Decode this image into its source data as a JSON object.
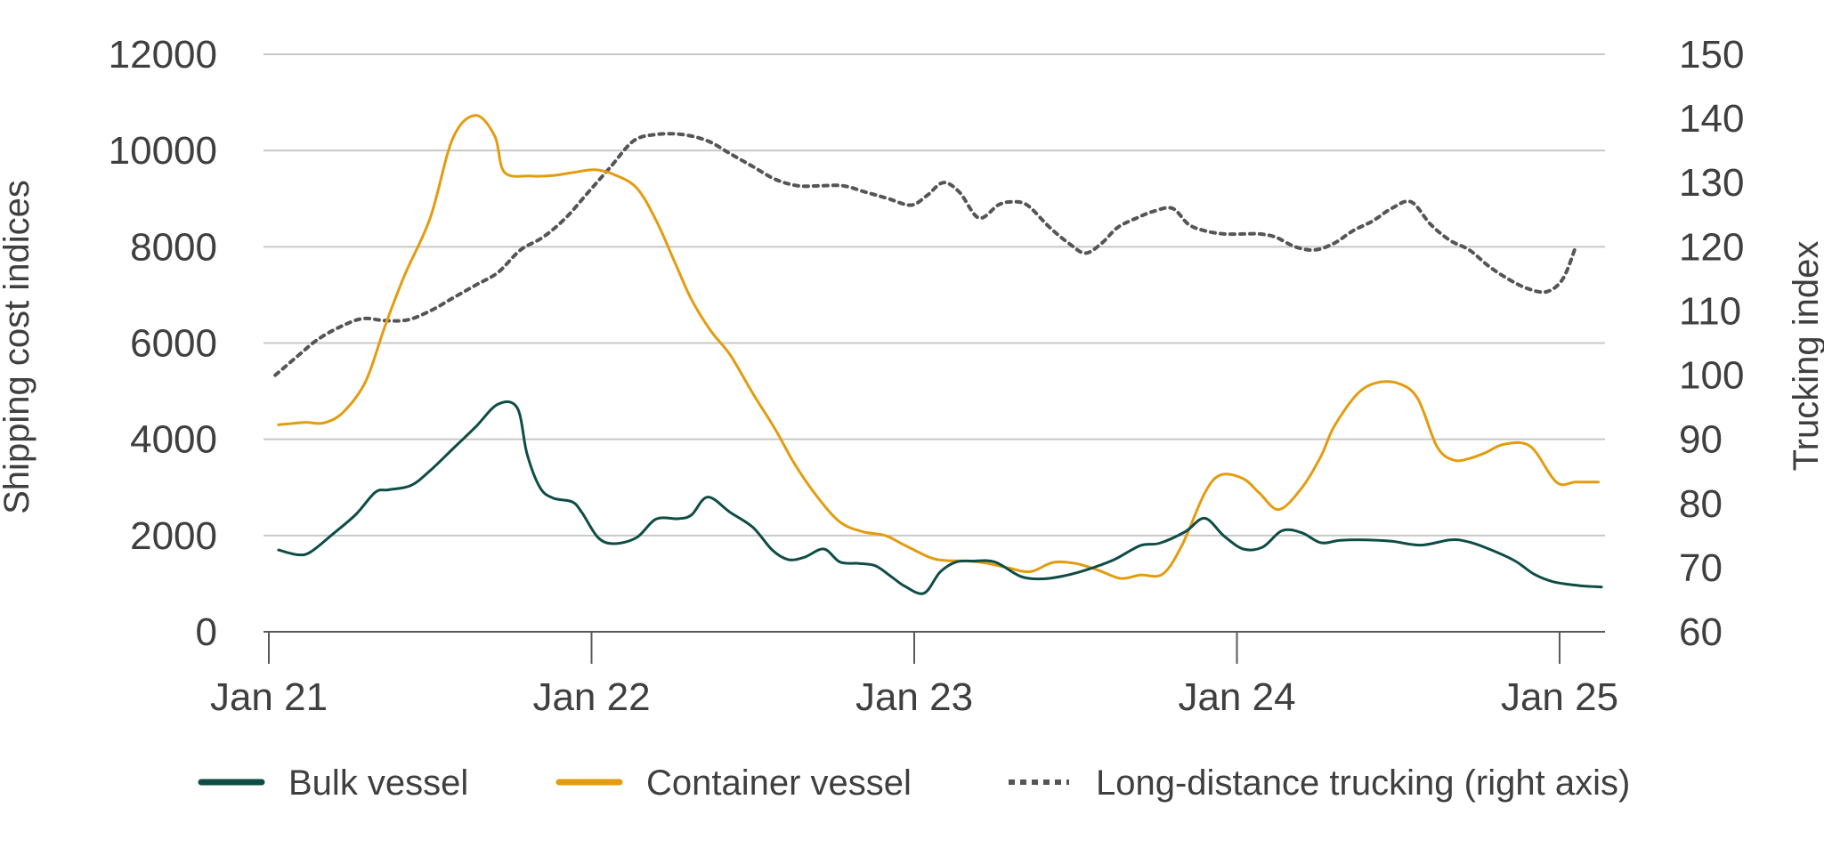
{
  "chart_data": {
    "type": "line",
    "xlabel": "",
    "ylabel": "Shipping cost indices",
    "y2label": "Trucking index",
    "ylim": [
      0,
      12000
    ],
    "y2lim": [
      60,
      150
    ],
    "xlim": [
      2021.0,
      2025.18
    ],
    "x_ticks": [
      {
        "x": 2021.0,
        "label": "Jan 21"
      },
      {
        "x": 2022.0,
        "label": "Jan 22"
      },
      {
        "x": 2023.0,
        "label": "Jan 23"
      },
      {
        "x": 2024.0,
        "label": "Jan 24"
      },
      {
        "x": 2025.0,
        "label": "Jan 25"
      }
    ],
    "y_ticks": [
      "0",
      "2000",
      "4000",
      "6000",
      "8000",
      "10000",
      "12000"
    ],
    "y_tick_values": [
      0,
      2000,
      4000,
      6000,
      8000,
      10000,
      12000
    ],
    "y2_ticks": [
      "60",
      "70",
      "80",
      "90",
      "100",
      "110",
      "120",
      "130",
      "140",
      "150"
    ],
    "y2_tick_values": [
      60,
      70,
      80,
      90,
      100,
      110,
      120,
      130,
      140,
      150
    ],
    "grid": true,
    "legend_position": "bottom",
    "series": [
      {
        "name": "Bulk vessel",
        "axis": "left",
        "color": "#0e4d45",
        "style": "solid",
        "x": [
          2021.03,
          2021.09,
          2021.13,
          2021.2,
          2021.27,
          2021.33,
          2021.37,
          2021.44,
          2021.5,
          2021.57,
          2021.64,
          2021.71,
          2021.77,
          2021.8,
          2021.84,
          2021.88,
          2021.94,
          2021.97,
          2022.02,
          2022.07,
          2022.14,
          2022.2,
          2022.27,
          2022.31,
          2022.36,
          2022.43,
          2022.5,
          2022.56,
          2022.61,
          2022.66,
          2022.72,
          2022.77,
          2022.83,
          2022.88,
          2022.93,
          2022.97,
          2023.03,
          2023.08,
          2023.13,
          2023.18,
          2023.25,
          2023.33,
          2023.4,
          2023.47,
          2023.54,
          2023.62,
          2023.7,
          2023.76,
          2023.84,
          2023.9,
          2023.96,
          2024.02,
          2024.08,
          2024.14,
          2024.2,
          2024.26,
          2024.32,
          2024.4,
          2024.48,
          2024.57,
          2024.66,
          2024.71,
          2024.77,
          2024.86,
          2024.92,
          2024.98,
          2025.06,
          2025.13
        ],
        "values": [
          1700,
          1600,
          1660,
          2040,
          2440,
          2900,
          2950,
          3040,
          3350,
          3800,
          4250,
          4730,
          4650,
          3700,
          3000,
          2780,
          2700,
          2480,
          1960,
          1830,
          1960,
          2340,
          2350,
          2430,
          2800,
          2480,
          2170,
          1700,
          1500,
          1550,
          1720,
          1450,
          1420,
          1370,
          1140,
          950,
          800,
          1240,
          1450,
          1470,
          1450,
          1150,
          1100,
          1170,
          1300,
          1500,
          1790,
          1840,
          2080,
          2360,
          1990,
          1720,
          1760,
          2100,
          2060,
          1850,
          1900,
          1910,
          1880,
          1800,
          1910,
          1880,
          1750,
          1480,
          1200,
          1040,
          960,
          930
        ]
      },
      {
        "name": "Container vessel",
        "axis": "left",
        "color": "#e39c0f",
        "style": "solid",
        "x": [
          2021.03,
          2021.11,
          2021.17,
          2021.23,
          2021.3,
          2021.36,
          2021.42,
          2021.5,
          2021.57,
          2021.64,
          2021.7,
          2021.73,
          2021.81,
          2021.88,
          2021.94,
          2022.01,
          2022.07,
          2022.14,
          2022.2,
          2022.26,
          2022.31,
          2022.37,
          2022.43,
          2022.5,
          2022.57,
          2022.63,
          2022.7,
          2022.77,
          2022.84,
          2022.91,
          2022.97,
          2023.05,
          2023.1,
          2023.16,
          2023.22,
          2023.29,
          2023.36,
          2023.43,
          2023.5,
          2023.57,
          2023.64,
          2023.7,
          2023.77,
          2023.83,
          2023.9,
          2023.95,
          2024.02,
          2024.07,
          2024.13,
          2024.2,
          2024.26,
          2024.3,
          2024.37,
          2024.43,
          2024.5,
          2024.56,
          2024.62,
          2024.67,
          2024.72,
          2024.77,
          2024.83,
          2024.91,
          2024.99,
          2025.05,
          2025.12
        ],
        "values": [
          4300,
          4350,
          4340,
          4560,
          5200,
          6350,
          7400,
          8600,
          10250,
          10730,
          10300,
          9550,
          9470,
          9480,
          9540,
          9600,
          9500,
          9220,
          8550,
          7650,
          6900,
          6250,
          5750,
          4950,
          4200,
          3480,
          2800,
          2280,
          2080,
          2000,
          1800,
          1540,
          1480,
          1470,
          1430,
          1330,
          1250,
          1440,
          1420,
          1280,
          1110,
          1180,
          1200,
          1800,
          2880,
          3260,
          3180,
          2880,
          2540,
          2980,
          3640,
          4250,
          4920,
          5170,
          5160,
          4850,
          3850,
          3570,
          3600,
          3720,
          3900,
          3850,
          3110,
          3110,
          3110
        ]
      },
      {
        "name": "Long-distance trucking (right axis)",
        "axis": "right",
        "color": "#555555",
        "style": "dotted",
        "x": [
          2021.02,
          2021.09,
          2021.15,
          2021.22,
          2021.29,
          2021.36,
          2021.43,
          2021.5,
          2021.57,
          2021.64,
          2021.71,
          2021.78,
          2021.85,
          2021.92,
          2021.99,
          2022.06,
          2022.13,
          2022.2,
          2022.28,
          2022.36,
          2022.43,
          2022.5,
          2022.57,
          2022.64,
          2022.71,
          2022.78,
          2022.85,
          2022.92,
          2022.99,
          2023.04,
          2023.09,
          2023.14,
          2023.2,
          2023.26,
          2023.3,
          2023.35,
          2023.42,
          2023.48,
          2023.53,
          2023.58,
          2023.63,
          2023.69,
          2023.74,
          2023.8,
          2023.85,
          2023.9,
          2023.96,
          2024.02,
          2024.07,
          2024.12,
          2024.18,
          2024.24,
          2024.3,
          2024.36,
          2024.42,
          2024.48,
          2024.54,
          2024.6,
          2024.66,
          2024.72,
          2024.78,
          2024.84,
          2024.9,
          2024.96,
          2025.01,
          2025.05
        ],
        "values": [
          100,
          103,
          105.5,
          107.5,
          108.8,
          108.5,
          108.6,
          110,
          112,
          114,
          116,
          119.5,
          121.5,
          124.5,
          128.5,
          132.5,
          136.5,
          137.5,
          137.5,
          136.5,
          134.5,
          132.5,
          130.5,
          129.5,
          129.5,
          129.5,
          128.5,
          127.5,
          126.5,
          128,
          130,
          128.5,
          124.5,
          126.5,
          127,
          126.5,
          123,
          120.5,
          119,
          120.5,
          123,
          124.5,
          125.5,
          126,
          123.5,
          122.5,
          122,
          122,
          122,
          121.5,
          120,
          119.5,
          120.5,
          122.5,
          124,
          126,
          127,
          123.5,
          121,
          119.5,
          117,
          115,
          113.5,
          113,
          115,
          120
        ]
      }
    ]
  }
}
